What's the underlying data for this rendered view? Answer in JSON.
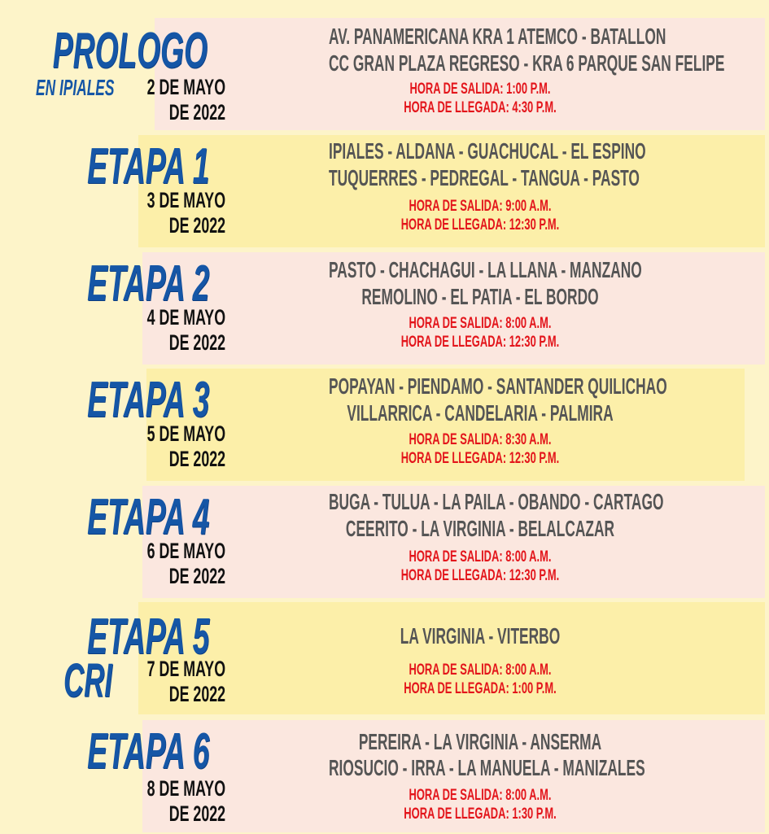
{
  "stages": [
    {
      "title": "PROLOGO",
      "subtitle": "EN IPIALES",
      "date_line1": "2 DE MAYO",
      "date_line2": "DE 2022",
      "route": [
        "AV. PANAMERICANA  KRA 1 ATEMCO - BATALLON",
        "CC GRAN PLAZA REGRESO - KRA 6 PARQUE SAN FELIPE"
      ],
      "departure": "HORA DE SALIDA: 1:00 P.M.",
      "arrival": "HORA DE LLEGADA: 4:30 P.M."
    },
    {
      "title": "ETAPA 1",
      "date_line1": "3 DE MAYO",
      "date_line2": "DE 2022",
      "route": [
        "IPIALES - ALDANA - GUACHUCAL - EL ESPINO",
        "TUQUERRES - PEDREGAL - TANGUA - PASTO"
      ],
      "departure": "HORA DE SALIDA: 9:00 A.M.",
      "arrival": "HORA DE LLEGADA:  12:30 P.M."
    },
    {
      "title": "ETAPA 2",
      "date_line1": "4 DE MAYO",
      "date_line2": "DE 2022",
      "route": [
        "PASTO - CHACHAGUI - LA LLANA - MANZANO",
        "REMOLINO - EL PATIA - EL BORDO"
      ],
      "departure": "HORA DE SALIDA: 8:00 A.M.",
      "arrival": "HORA DE LLEGADA:  12:30 P.M."
    },
    {
      "title": "ETAPA 3",
      "date_line1": "5 DE MAYO",
      "date_line2": "DE 2022",
      "route": [
        "POPAYAN - PIENDAMO - SANTANDER QUILICHAO",
        "VILLARRICA - CANDELARIA - PALMIRA"
      ],
      "departure": "HORA DE SALIDA: 8:30 A.M.",
      "arrival": "HORA DE LLEGADA:  12:30 P.M."
    },
    {
      "title": "ETAPA 4",
      "date_line1": "6 DE MAYO",
      "date_line2": "DE 2022",
      "route": [
        "BUGA - TULUA - LA PAILA - OBANDO - CARTAGO",
        "CEERITO - LA VIRGINIA - BELALCAZAR"
      ],
      "departure": "HORA DE SALIDA: 8:00 A.M.",
      "arrival": "HORA DE LLEGADA:  12:30 P.M."
    },
    {
      "title": "ETAPA 5",
      "subtitle": "CRI",
      "date_line1": "7 DE MAYO",
      "date_line2": "DE 2022",
      "route": [
        "LA VIRGINIA - VITERBO"
      ],
      "departure": "HORA DE SALIDA: 8:00 A.M.",
      "arrival": "HORA DE LLEGADA: 1:00 P.M."
    },
    {
      "title": "ETAPA 6",
      "date_line1": "8 DE MAYO",
      "date_line2": "DE 2022",
      "route": [
        "PEREIRA - LA VIRGINIA - ANSERMA",
        "RIOSUCIO - IRRA - LA MANUELA - MANIZALES"
      ],
      "departure": "HORA DE SALIDA: 8:00 A.M.",
      "arrival": "HORA DE LLEGADA: 1:30 P.M."
    }
  ],
  "colors": {
    "title": "#1556a6",
    "route": "#555555",
    "time": "#e3151b",
    "date": "#111111",
    "band_pink": "#fbe7df",
    "band_yellow": "#fcefa9",
    "background": "#fdf4c9"
  }
}
